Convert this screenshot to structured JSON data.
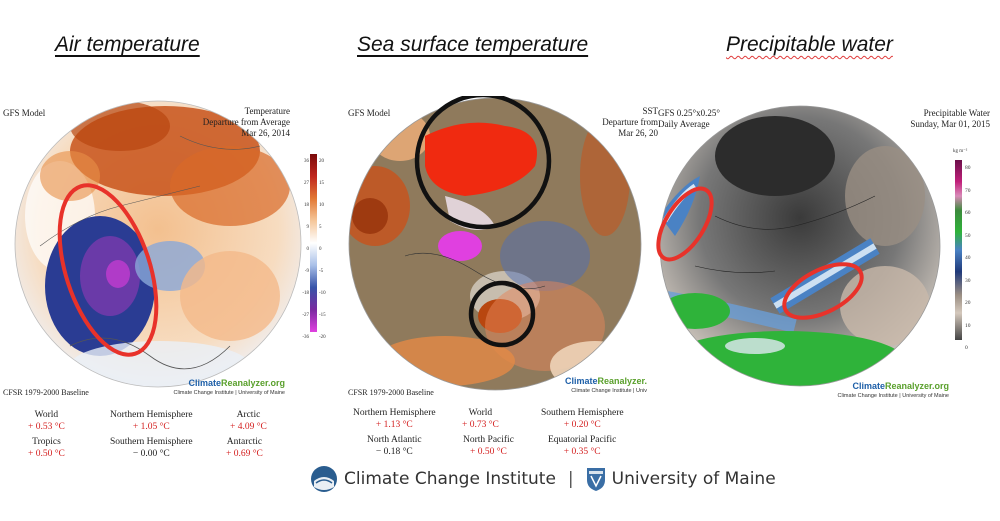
{
  "headings": {
    "air": "Air temperature",
    "sst": "Sea surface temperature",
    "pw": "Precipitable water"
  },
  "air": {
    "model": "GFS Model",
    "title_lines": [
      "Temperature",
      "Departure from Average",
      "Mar 26, 2014"
    ],
    "scale_left": [
      "36",
      "27",
      "18",
      "9",
      "0",
      "-9",
      "-18",
      "-27",
      "-36"
    ],
    "scale_right": [
      "20",
      "15",
      "10",
      "5",
      "0",
      "-5",
      "-10",
      "-15",
      "-20"
    ],
    "baseline": "CFSR 1979-2000 Baseline",
    "credit_a": "Climate",
    "credit_b": "Reanalyzer.org",
    "credit_sub": "Climate Change Institute | University of Maine",
    "stats": [
      {
        "name": "World",
        "value": "+ 0.53 °C"
      },
      {
        "name": "Northern Hemisphere",
        "value": "+ 1.05 °C"
      },
      {
        "name": "Arctic",
        "value": "+ 4.09 °C"
      },
      {
        "name": "Tropics",
        "value": "+ 0.50 °C"
      },
      {
        "name": "Southern Hemisphere",
        "value": "− 0.00 °C"
      },
      {
        "name": "Antarctic",
        "value": "+ 0.69 °C"
      }
    ]
  },
  "sst": {
    "model": "GFS Model",
    "title_lines": [
      "SST",
      "Departure from",
      "Mar 26, 20"
    ],
    "baseline": "CFSR 1979-2000 Baseline",
    "credit_a": "Climate",
    "credit_b": "Reanalyzer.",
    "credit_sub": "Climate Change Institute | Univ",
    "stats": [
      {
        "name": "Northern Hemisphere",
        "value": "+ 1.13 °C"
      },
      {
        "name": "World",
        "value": "+ 0.73 °C"
      },
      {
        "name": "Southern Hemisphere",
        "value": "+ 0.20 °C"
      },
      {
        "name": "North Atlantic",
        "value": "− 0.18 °C"
      },
      {
        "name": "North Pacific",
        "value": "+ 0.50 °C"
      },
      {
        "name": "Equatorial Pacific",
        "value": "+ 0.35 °C"
      }
    ]
  },
  "pw": {
    "model_lines": [
      "GFS 0.25°x0.25°",
      "Daily Average"
    ],
    "title_lines": [
      "Precipitable Water",
      "Sunday, Mar 01, 2015"
    ],
    "unit": "kg m⁻²",
    "scale": [
      "80",
      "70",
      "60",
      "50",
      "40",
      "30",
      "20",
      "10",
      "0"
    ],
    "credit_a": "Climate",
    "credit_b": "Reanalyzer.org",
    "credit_sub": "Climate Change Institute | University of Maine"
  },
  "footer": {
    "left": "Climate Change Institute",
    "sep": "|",
    "right": "University of Maine"
  },
  "colors": {
    "warm": "#c8531b",
    "cold": "#2a3c93",
    "highlight": "#e8322a",
    "circle": "#111111",
    "land": "#8f7a5c"
  }
}
